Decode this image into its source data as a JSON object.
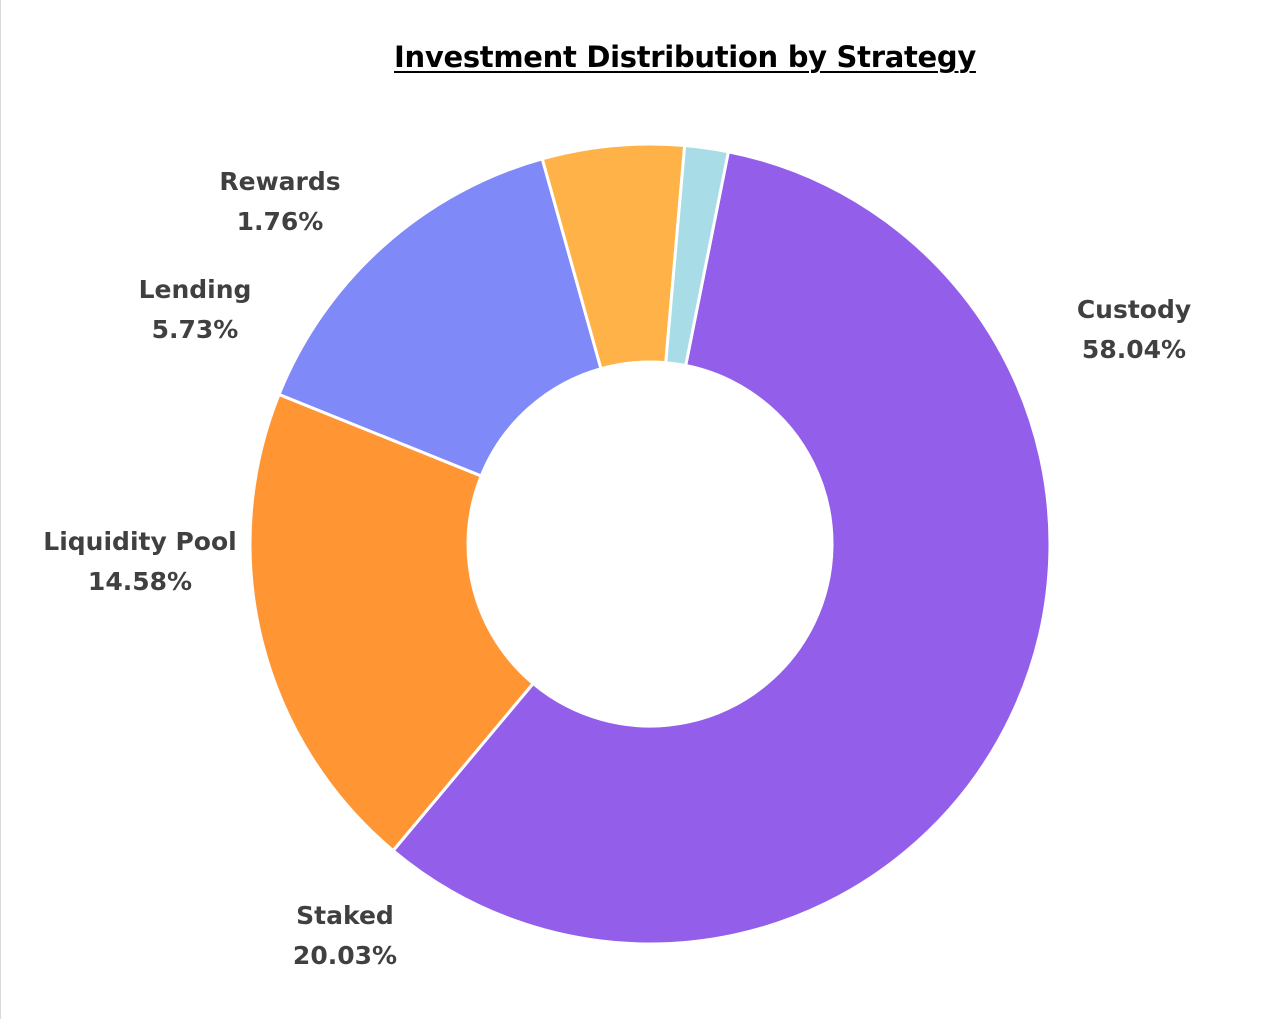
{
  "chart_data": {
    "type": "pie",
    "title": "Investment Distribution by Strategy",
    "donut": true,
    "labels": [
      "Custody",
      "Staked",
      "Liquidity Pool",
      "Lending",
      "Rewards"
    ],
    "values": [
      58.04,
      20.03,
      14.58,
      5.73,
      1.76
    ],
    "value_labels": [
      "58.04%",
      "20.03%",
      "14.58%",
      "5.73%",
      "1.76%"
    ],
    "colors": [
      "#935FEA",
      "#FF9633",
      "#8089F8",
      "#FFB247",
      "#A8DDE8"
    ],
    "legend": "none"
  }
}
